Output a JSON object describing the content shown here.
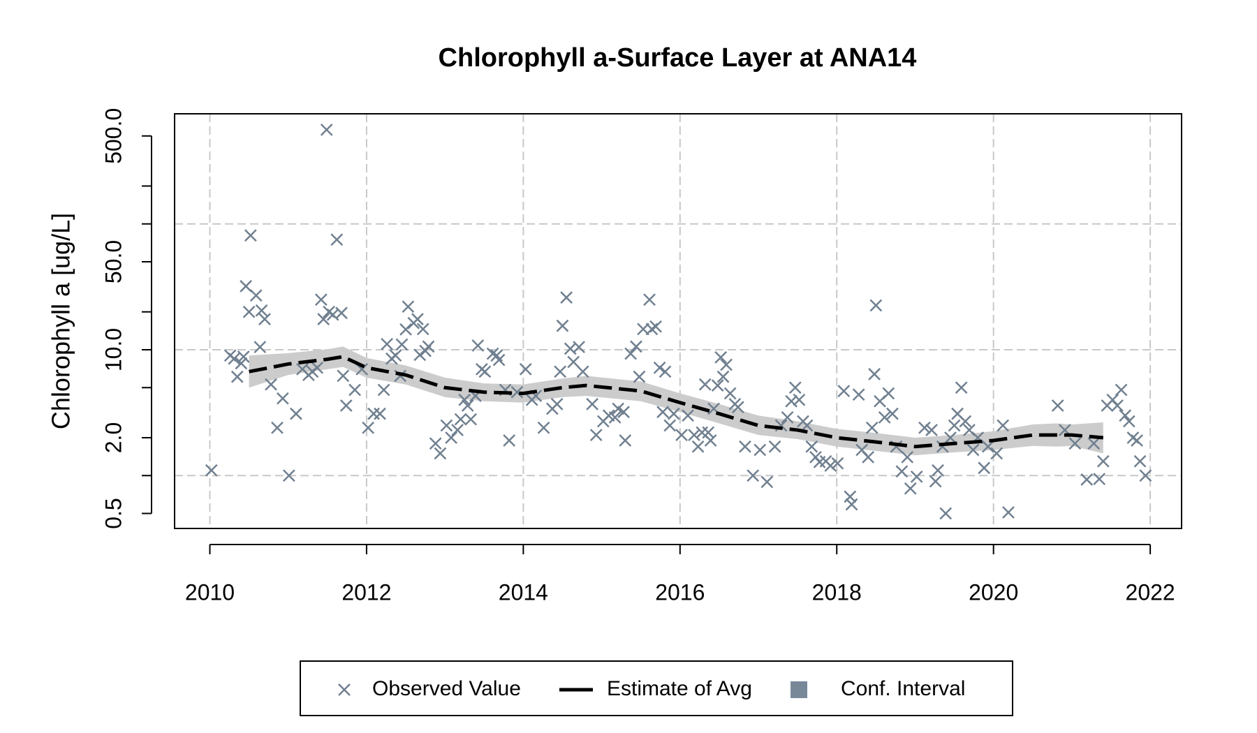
{
  "chart_data": {
    "type": "scatter",
    "title": "Chlorophyll a-Surface Layer at ANA14",
    "ylabel": "Chlorophyll a [ug/L]",
    "log_y": true,
    "xlim": [
      2009.55,
      2022.4
    ],
    "ylim": [
      0.38,
      750
    ],
    "xticks": [
      2010,
      2012,
      2014,
      2016,
      2018,
      2020,
      2022
    ],
    "yticks": [
      {
        "value": 0.5,
        "label": "0.5"
      },
      {
        "value": 2,
        "label": "2.0"
      },
      {
        "value": 10,
        "label": "10.0"
      },
      {
        "value": 50,
        "label": "50.0"
      },
      {
        "value": 500,
        "label": "500.0"
      }
    ],
    "yminor_ticks": [
      1,
      5,
      20,
      100,
      200
    ],
    "ygrid": [
      1,
      10,
      100
    ],
    "xgrid": true,
    "legend": "bottom",
    "series": [
      {
        "name": "Observed Value",
        "type": "points",
        "color": "#708090",
        "x": [
          2010.02,
          2010.26,
          2010.31,
          2010.35,
          2010.4,
          2010.43,
          2010.46,
          2010.5,
          2010.52,
          2010.59,
          2010.64,
          2010.66,
          2010.7,
          2010.78,
          2010.86,
          2010.93,
          2011.01,
          2011.1,
          2011.18,
          2011.26,
          2011.31,
          2011.37,
          2011.42,
          2011.45,
          2011.49,
          2011.52,
          2011.57,
          2011.62,
          2011.68,
          2011.7,
          2011.74,
          2011.85,
          2011.94,
          2012.02,
          2012.09,
          2012.17,
          2012.22,
          2012.26,
          2012.32,
          2012.37,
          2012.43,
          2012.45,
          2012.5,
          2012.53,
          2012.6,
          2012.65,
          2012.68,
          2012.72,
          2012.75,
          2012.79,
          2012.88,
          2012.94,
          2013.02,
          2013.08,
          2013.16,
          2013.2,
          2013.25,
          2013.29,
          2013.33,
          2013.39,
          2013.42,
          2013.47,
          2013.51,
          2013.61,
          2013.66,
          2013.69,
          2013.77,
          2013.82,
          2013.92,
          2014.03,
          2014.11,
          2014.16,
          2014.26,
          2014.37,
          2014.43,
          2014.47,
          2014.5,
          2014.55,
          2014.6,
          2014.64,
          2014.71,
          2014.76,
          2014.88,
          2014.93,
          2015.02,
          2015.09,
          2015.17,
          2015.21,
          2015.28,
          2015.3,
          2015.37,
          2015.44,
          2015.48,
          2015.53,
          2015.61,
          2015.64,
          2015.69,
          2015.74,
          2015.78,
          2015.81,
          2015.87,
          2015.92,
          2016.02,
          2016.1,
          2016.18,
          2016.23,
          2016.28,
          2016.32,
          2016.36,
          2016.39,
          2016.43,
          2016.48,
          2016.52,
          2016.55,
          2016.59,
          2016.64,
          2016.7,
          2016.74,
          2016.83,
          2016.93,
          2017.02,
          2017.11,
          2017.21,
          2017.29,
          2017.37,
          2017.42,
          2017.47,
          2017.52,
          2017.57,
          2017.62,
          2017.68,
          2017.73,
          2017.78,
          2017.86,
          2017.92,
          2018.01,
          2018.09,
          2018.17,
          2018.19,
          2018.28,
          2018.32,
          2018.4,
          2018.45,
          2018.48,
          2018.5,
          2018.55,
          2018.61,
          2018.66,
          2018.71,
          2018.76,
          2018.83,
          2018.9,
          2018.94,
          2019.02,
          2019.12,
          2019.21,
          2019.26,
          2019.29,
          2019.35,
          2019.39,
          2019.45,
          2019.5,
          2019.54,
          2019.59,
          2019.64,
          2019.69,
          2019.74,
          2019.8,
          2019.88,
          2019.93,
          2020.04,
          2020.12,
          2020.19,
          2020.82,
          2020.91,
          2021.04,
          2021.19,
          2021.28,
          2021.35,
          2021.4,
          2021.45,
          2021.52,
          2021.58,
          2021.63,
          2021.68,
          2021.73,
          2021.78,
          2021.83,
          2021.87,
          2021.94
        ],
        "values": [
          1.1,
          9.0,
          8.5,
          6.1,
          7.8,
          8.8,
          32,
          20,
          81,
          27,
          10.5,
          20.5,
          17.5,
          5.3,
          2.4,
          4.1,
          1.0,
          3.1,
          7,
          6.3,
          6.7,
          7.2,
          25,
          17.5,
          560,
          20,
          19,
          75,
          19.6,
          6.2,
          3.6,
          4.8,
          7,
          2.4,
          3.1,
          3.1,
          4.8,
          11.1,
          8.5,
          9,
          6.2,
          11,
          14.5,
          22,
          16.3,
          17.5,
          9.1,
          14.6,
          9.8,
          10.6,
          1.8,
          1.5,
          2.5,
          2.0,
          2.3,
          2.8,
          4,
          3.6,
          2.8,
          4.3,
          10.8,
          7,
          6.7,
          9.3,
          9,
          8.3,
          4.8,
          1.9,
          4.6,
          7,
          4,
          4.3,
          2.4,
          3.4,
          3.7,
          6.7,
          15.5,
          26,
          10.2,
          8,
          10.5,
          6.7,
          3.7,
          2.1,
          2.7,
          3,
          2.9,
          3.4,
          3.2,
          1.9,
          9.3,
          10.6,
          6.1,
          14.6,
          25,
          14.6,
          15.3,
          7.2,
          3.2,
          6.7,
          2.5,
          3.1,
          2.1,
          3,
          2.1,
          1.7,
          2.2,
          5.3,
          2.2,
          1.9,
          3.4,
          5.2,
          8.7,
          6.1,
          7.6,
          4.5,
          3.7,
          3.5,
          1.7,
          1.0,
          1.6,
          0.89,
          1.7,
          2.5,
          2.9,
          3.9,
          5,
          4,
          2.7,
          2.5,
          1.7,
          1.4,
          1.28,
          1.3,
          1.2,
          1.25,
          4.7,
          0.68,
          0.59,
          4.4,
          1.6,
          1.4,
          2.4,
          6.4,
          22.5,
          3.9,
          2.9,
          4.5,
          3.1,
          1.7,
          1.08,
          1.4,
          0.79,
          0.98,
          2.4,
          2.3,
          0.9,
          1.1,
          1.7,
          0.5,
          2.0,
          2.5,
          3.1,
          5,
          2.7,
          2.3,
          1.6,
          2.0,
          1.15,
          1.7,
          1.5,
          2.5,
          0.51,
          3.6,
          2.3,
          1.8,
          0.93,
          1.8,
          0.94,
          1.3,
          3.6,
          4,
          3.6,
          4.8,
          3,
          2.7,
          2.0,
          1.9,
          1.3,
          1.0
        ]
      },
      {
        "name": "Estimate of Avg",
        "type": "line",
        "color": "#000000",
        "x": [
          2010.5,
          2011,
          2011.5,
          2011.7,
          2012,
          2012.5,
          2013,
          2013.5,
          2014,
          2014.5,
          2014.8,
          2015.5,
          2016,
          2016.5,
          2017,
          2017.5,
          2018,
          2018.5,
          2019,
          2019.5,
          2020,
          2020.5,
          2020.8,
          2021,
          2021.4
        ],
        "values": [
          6.7,
          7.7,
          8.4,
          8.8,
          7.2,
          6.3,
          5,
          4.6,
          4.5,
          5,
          5.2,
          4.7,
          3.8,
          3.1,
          2.5,
          2.3,
          2.0,
          1.85,
          1.7,
          1.8,
          1.9,
          2.1,
          2.1,
          2.1,
          2.0
        ]
      },
      {
        "name": "Conf. Interval",
        "type": "band",
        "color": "#cccccc",
        "legend_color": "#778899",
        "x": [
          2010.5,
          2011,
          2011.5,
          2011.7,
          2012,
          2012.5,
          2013,
          2013.5,
          2014,
          2014.5,
          2014.8,
          2015.5,
          2016,
          2016.5,
          2017,
          2017.5,
          2018,
          2018.5,
          2019,
          2019.5,
          2020,
          2020.5,
          2020.8,
          2021,
          2021.4
        ],
        "lower": [
          5.0,
          6.3,
          7.0,
          7.3,
          6.0,
          5.3,
          4.2,
          3.9,
          3.8,
          4.2,
          4.3,
          3.9,
          3.2,
          2.6,
          2.1,
          1.95,
          1.7,
          1.57,
          1.45,
          1.53,
          1.6,
          1.72,
          1.7,
          1.72,
          1.5
        ],
        "upper": [
          9.0,
          9.4,
          10.1,
          10.6,
          8.6,
          7.5,
          6.0,
          5.4,
          5.3,
          5.9,
          6.2,
          5.6,
          4.5,
          3.7,
          3.0,
          2.7,
          2.35,
          2.18,
          2.0,
          2.1,
          2.25,
          2.55,
          2.6,
          2.55,
          2.65
        ]
      }
    ]
  }
}
